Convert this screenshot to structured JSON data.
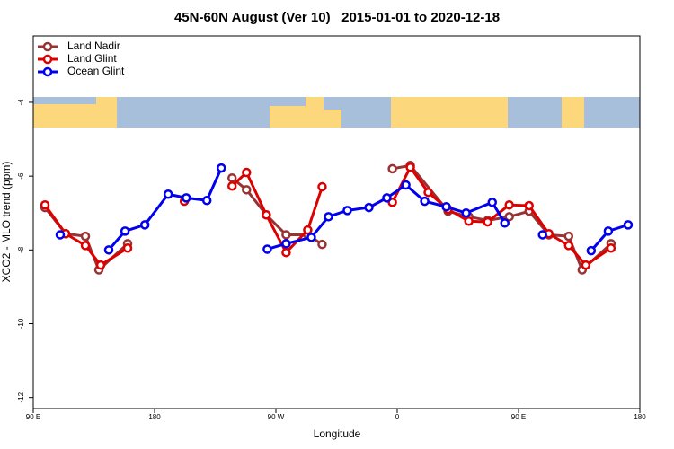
{
  "chart_data": {
    "type": "line",
    "title": "45N-60N August (Ver 10)   2015-01-01 to 2020-12-18",
    "x_label": "Longitude",
    "y_label": "XCO2 - MLO trend (ppm)",
    "xlim": [
      90,
      540
    ],
    "xticks": [
      {
        "value": 90,
        "label": "90 E"
      },
      {
        "value": 180,
        "label": "180"
      },
      {
        "value": 270,
        "label": "90 W"
      },
      {
        "value": 360,
        "label": "0"
      },
      {
        "value": 450,
        "label": "90 E"
      },
      {
        "value": 540,
        "label": "180"
      }
    ],
    "ylim": [
      -12.3,
      -2.2
    ],
    "yticks": [
      -4,
      -6,
      -8,
      -10,
      -12
    ],
    "legend": "top-left",
    "series": [
      {
        "name": "Land Nadir",
        "color": "#993333",
        "x": [
          98.7,
          114,
          128.7,
          138.7,
          160,
          null,
          237.5,
          248.2,
          262.9,
          277.6,
          293.6,
          304.3,
          null,
          356.4,
          369.7,
          397.7,
          413.1,
          427.1,
          443.1,
          457.8,
          472.5,
          487.2,
          497.2,
          518.6
        ],
        "values": [
          -6.85,
          -7.56,
          -7.63,
          -8.54,
          -7.83,
          null,
          -6.05,
          -6.37,
          -7.05,
          -7.59,
          -7.59,
          -7.85,
          null,
          -5.8,
          -5.71,
          -6.95,
          -7.1,
          -7.2,
          -7.1,
          -6.95,
          -7.59,
          -7.63,
          -8.54,
          -7.83
        ]
      },
      {
        "name": "Land Glint",
        "color": "#dd0000",
        "x": [
          98.7,
          114,
          128.7,
          140,
          160,
          null,
          202.1,
          null,
          237.5,
          248.2,
          262.9,
          277.6,
          293.6,
          304.3,
          null,
          356.4,
          369.7,
          383,
          397.7,
          413.1,
          427.1,
          443.1,
          457.8,
          472.5,
          487.2,
          499.9,
          518.6
        ],
        "values": [
          -6.78,
          -7.56,
          -7.88,
          -8.41,
          -7.95,
          null,
          -6.68,
          null,
          -6.27,
          -5.9,
          -7.05,
          -8.07,
          -7.46,
          -6.29,
          null,
          -6.71,
          -5.76,
          -6.44,
          -6.9,
          -7.22,
          -7.24,
          -6.78,
          -6.8,
          -7.56,
          -7.88,
          -8.41,
          -7.95
        ]
      },
      {
        "name": "Ocean Glint",
        "color": "#0000ee",
        "x": [
          110,
          null,
          146,
          158.1,
          172.8,
          190.1,
          203.5,
          218.8,
          229.5,
          null,
          263.6,
          277.6,
          296.3,
          309,
          323,
          339,
          352.3,
          366.4,
          380.4,
          396.4,
          411.1,
          430.5,
          439.8,
          null,
          467.8,
          null,
          503.9,
          516.6,
          531.3
        ],
        "values": [
          -7.59,
          null,
          -8.0,
          -7.49,
          -7.32,
          -6.49,
          -6.59,
          -6.66,
          -5.78,
          null,
          -7.98,
          -7.83,
          -7.66,
          -7.1,
          -6.93,
          -6.85,
          -6.59,
          -6.24,
          -6.68,
          -6.83,
          -7.0,
          -6.71,
          -7.27,
          null,
          -7.59,
          null,
          -8.02,
          -7.49,
          -7.32
        ]
      }
    ]
  }
}
